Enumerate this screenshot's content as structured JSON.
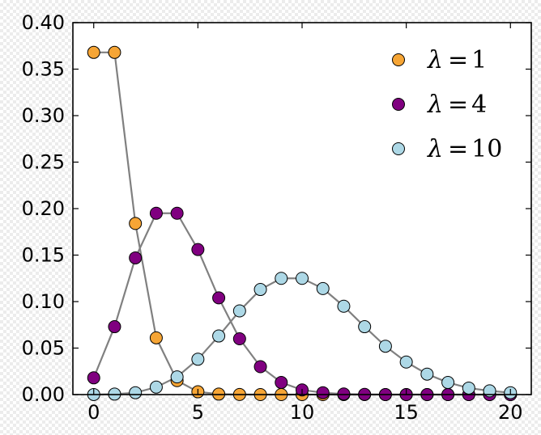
{
  "chart_data": {
    "type": "scatter",
    "xlim": [
      -1,
      21
    ],
    "ylim": [
      0,
      0.4
    ],
    "x_ticks": [
      0,
      5,
      10,
      15,
      20
    ],
    "x_tick_labels": [
      "0",
      "5",
      "10",
      "15",
      "20"
    ],
    "y_ticks": [
      0,
      0.05,
      0.1,
      0.15,
      0.2,
      0.25,
      0.3,
      0.35,
      0.4
    ],
    "y_tick_labels": [
      "0.00",
      "0.05",
      "0.10",
      "0.15",
      "0.20",
      "0.25",
      "0.30",
      "0.35",
      "0.40"
    ],
    "grid": false,
    "legend_position": "top-right",
    "line_color": "#808080",
    "series": [
      {
        "name": "λ=1",
        "symbol": "λ",
        "equals": "=",
        "param": "1",
        "color": "#F6A535",
        "x": [
          0,
          1,
          2,
          3,
          4,
          5,
          6,
          7,
          8,
          9,
          10,
          11,
          12,
          13,
          14,
          15,
          16,
          17,
          18,
          19,
          20
        ],
        "values": [
          0.368,
          0.368,
          0.184,
          0.061,
          0.015,
          0.003,
          0.0005,
          0.0001,
          0.0,
          0.0,
          0.0,
          0.0,
          0.0,
          0.0,
          0.0,
          0.0,
          0.0,
          0.0,
          0.0,
          0.0,
          0.0
        ]
      },
      {
        "name": "λ=4",
        "symbol": "λ",
        "equals": "=",
        "param": "4",
        "color": "#800080",
        "x": [
          0,
          1,
          2,
          3,
          4,
          5,
          6,
          7,
          8,
          9,
          10,
          11,
          12,
          13,
          14,
          15,
          16,
          17,
          18,
          19,
          20
        ],
        "values": [
          0.018,
          0.073,
          0.147,
          0.195,
          0.195,
          0.156,
          0.104,
          0.06,
          0.03,
          0.013,
          0.005,
          0.002,
          0.0006,
          0.0002,
          0.0,
          0.0,
          0.0,
          0.0,
          0.0,
          0.0,
          0.0
        ]
      },
      {
        "name": "λ=10",
        "symbol": "λ",
        "equals": "=",
        "param": "10",
        "color": "#ADD8E6",
        "x": [
          0,
          1,
          2,
          3,
          4,
          5,
          6,
          7,
          8,
          9,
          10,
          11,
          12,
          13,
          14,
          15,
          16,
          17,
          18,
          19,
          20
        ],
        "values": [
          5e-05,
          0.0005,
          0.002,
          0.008,
          0.019,
          0.038,
          0.063,
          0.09,
          0.113,
          0.125,
          0.125,
          0.114,
          0.095,
          0.073,
          0.052,
          0.035,
          0.022,
          0.013,
          0.007,
          0.004,
          0.002
        ]
      }
    ]
  }
}
